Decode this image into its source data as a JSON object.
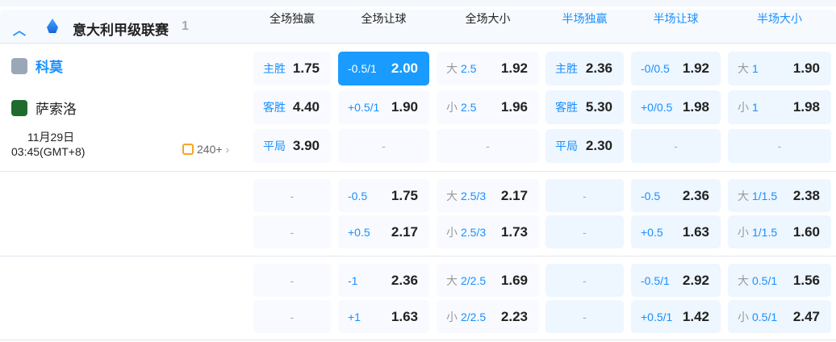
{
  "league": {
    "name": "意大利甲级联赛",
    "count": "1",
    "icon": "serie-a-logo",
    "collapse_icon": "chevron-up"
  },
  "columns": [
    "全场独赢",
    "全场让球",
    "全场大小",
    "半场独赢",
    "半场让球",
    "半场大小"
  ],
  "match": {
    "home": "科莫",
    "away": "萨索洛",
    "date": "11月29日",
    "time": "03:45(GMT+8)",
    "more_count": "240+"
  },
  "colors": {
    "accent": "#1890ff",
    "selected": "#1a9bff"
  },
  "rows": [
    [
      [
        "主胜",
        "",
        "1.75"
      ],
      [
        "-0.5/1",
        "",
        "2.00",
        "sel"
      ],
      [
        "大",
        "2.5",
        "1.92"
      ],
      [
        "主胜",
        "",
        "2.36"
      ],
      [
        "-0/0.5",
        "",
        "1.92"
      ],
      [
        "大",
        "1",
        "1.90"
      ]
    ],
    [
      [
        "客胜",
        "",
        "4.40"
      ],
      [
        "+0.5/1",
        "",
        "1.90"
      ],
      [
        "小",
        "2.5",
        "1.96"
      ],
      [
        "客胜",
        "",
        "5.30"
      ],
      [
        "+0/0.5",
        "",
        "1.98"
      ],
      [
        "小",
        "1",
        "1.98"
      ]
    ],
    [
      [
        "平局",
        "",
        "3.90"
      ],
      null,
      null,
      [
        "平局",
        "",
        "2.30"
      ],
      null,
      null
    ],
    [
      null,
      [
        "-0.5",
        "",
        "1.75"
      ],
      [
        "大",
        "2.5/3",
        "2.17"
      ],
      null,
      [
        "-0.5",
        "",
        "2.36"
      ],
      [
        "大",
        "1/1.5",
        "2.38"
      ]
    ],
    [
      null,
      [
        "+0.5",
        "",
        "2.17"
      ],
      [
        "小",
        "2.5/3",
        "1.73"
      ],
      null,
      [
        "+0.5",
        "",
        "1.63"
      ],
      [
        "小",
        "1/1.5",
        "1.60"
      ]
    ],
    [
      null,
      [
        "-1",
        "",
        "2.36"
      ],
      [
        "大",
        "2/2.5",
        "1.69"
      ],
      null,
      [
        "-0.5/1",
        "",
        "2.92"
      ],
      [
        "大",
        "0.5/1",
        "1.56"
      ]
    ],
    [
      null,
      [
        "+1",
        "",
        "1.63"
      ],
      [
        "小",
        "2/2.5",
        "2.23"
      ],
      null,
      [
        "+0.5/1",
        "",
        "1.42"
      ],
      [
        "小",
        "0.5/1",
        "2.47"
      ]
    ]
  ],
  "empty_text": "-"
}
